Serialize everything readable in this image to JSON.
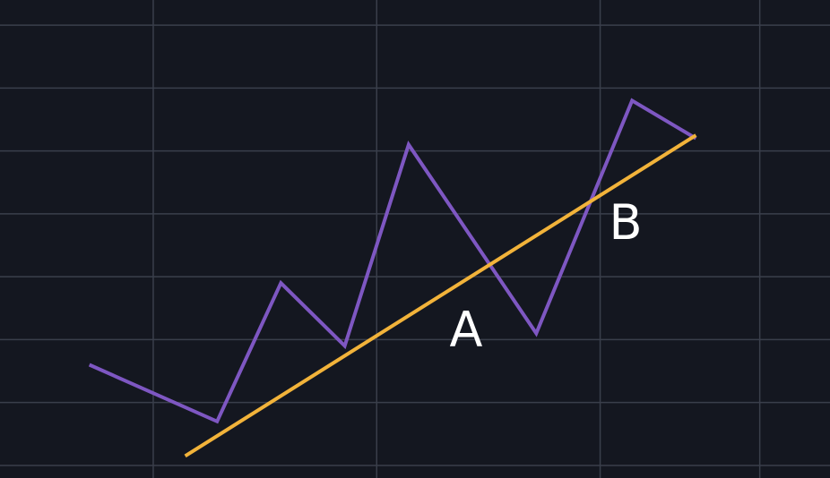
{
  "chart_data": {
    "type": "line",
    "title": "",
    "xlabel": "",
    "ylabel": "",
    "grid": true,
    "legend": "none",
    "xlim": [
      0,
      13
    ],
    "ylim": [
      0,
      7.6
    ],
    "x_gridlines": [
      2.4,
      5.9,
      9.4,
      11.9
    ],
    "y_gridlines": [
      0.2,
      1.2,
      2.2,
      3.2,
      4.2,
      5.2,
      6.2,
      7.2
    ],
    "series": [
      {
        "color": "#7e57c2",
        "points": [
          [
            1.4,
            1.8
          ],
          [
            3.4,
            0.9
          ],
          [
            4.4,
            3.1
          ],
          [
            5.4,
            2.1
          ],
          [
            6.4,
            5.3
          ],
          [
            8.4,
            2.3
          ],
          [
            9.9,
            6.0
          ],
          [
            10.9,
            5.4
          ]
        ]
      },
      {
        "color": "#f2b33a",
        "points": [
          [
            2.9,
            0.35
          ],
          [
            10.9,
            5.45
          ]
        ]
      }
    ],
    "annotations": [
      {
        "text": "A",
        "x": 7.3,
        "y": 2.1
      },
      {
        "text": "B",
        "x": 9.8,
        "y": 3.8
      }
    ]
  }
}
